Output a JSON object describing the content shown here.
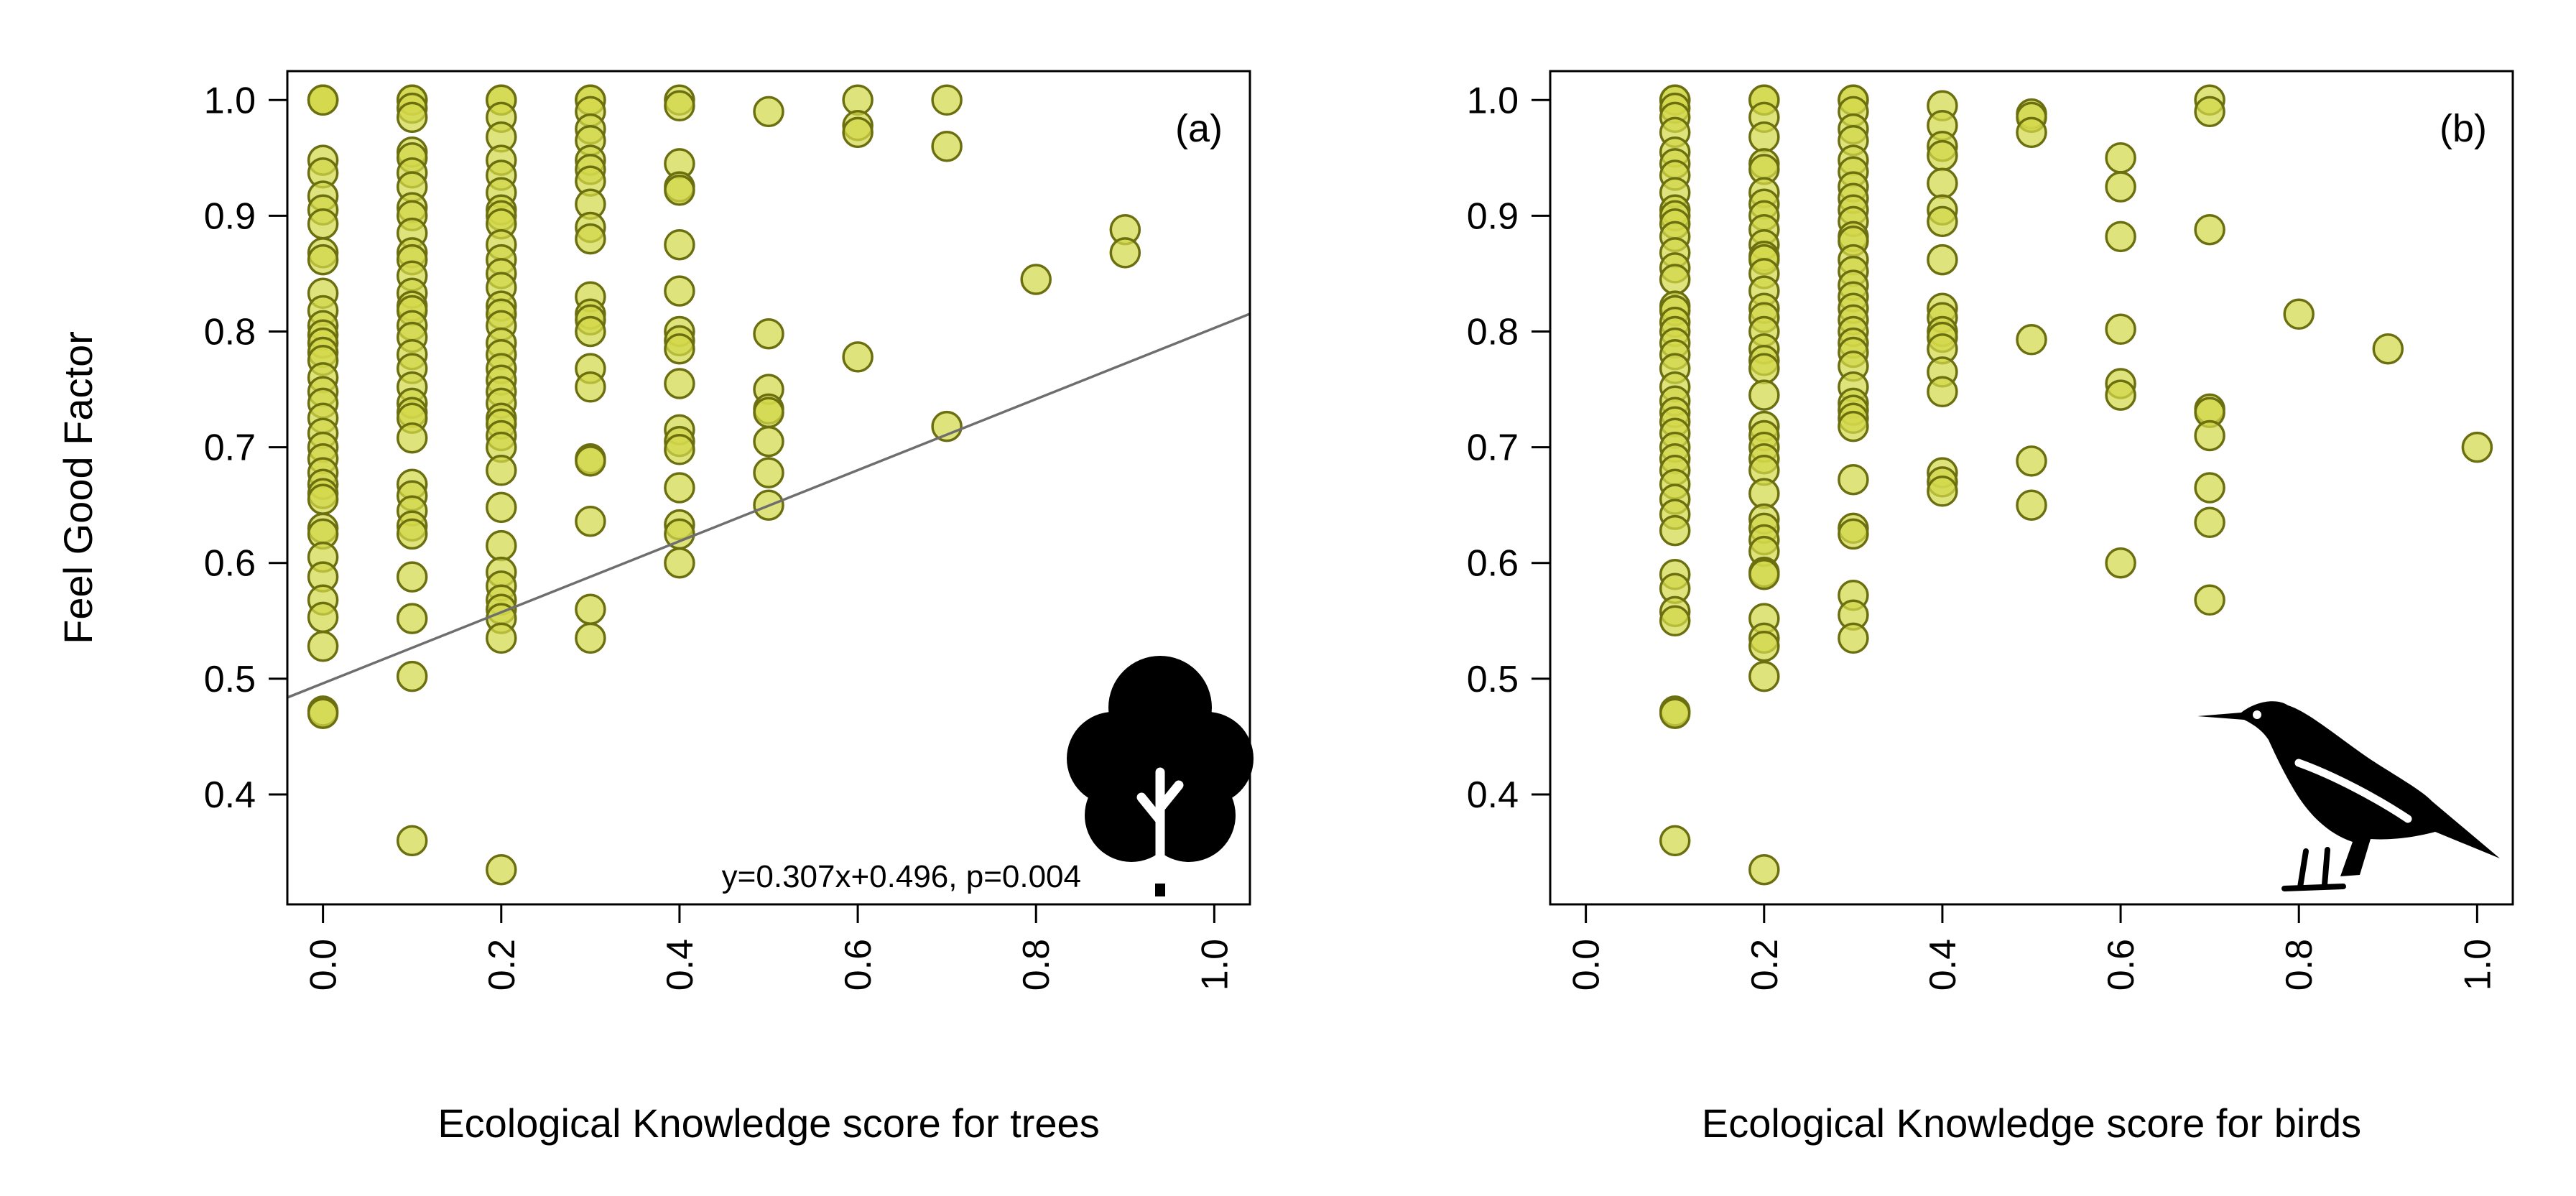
{
  "colors": {
    "point_fill": "#d2d84a",
    "point_fill_opacity": 0.72,
    "point_stroke": "#6b6f10",
    "fit_line": "#6e6e6e",
    "icon": "#000000"
  },
  "chart_data": [
    {
      "type": "scatter",
      "panel_label": "(a)",
      "xlabel": "Ecological Knowledge score for trees",
      "ylabel": "Feel Good Factor",
      "xlim": [
        -0.04,
        1.04
      ],
      "ylim": [
        0.305,
        1.025
      ],
      "x_ticks": [
        0.0,
        0.2,
        0.4,
        0.6,
        0.8,
        1.0
      ],
      "x_tick_labels": [
        "0.0",
        "0.2",
        "0.4",
        "0.6",
        "0.8",
        "1.0"
      ],
      "y_ticks": [
        0.4,
        0.5,
        0.6,
        0.7,
        0.8,
        0.9,
        1.0
      ],
      "y_tick_labels": [
        "0.4",
        "0.5",
        "0.6",
        "0.7",
        "0.8",
        "0.9",
        "1.0"
      ],
      "icon": "tree-icon",
      "annotation": "y=0.307x+0.496, p=0.004",
      "fit": {
        "slope": 0.307,
        "intercept": 0.496
      },
      "points": [
        [
          0.0,
          1.0
        ],
        [
          0.0,
          1.0
        ],
        [
          0.0,
          1.0
        ],
        [
          0.0,
          0.948
        ],
        [
          0.0,
          0.937
        ],
        [
          0.0,
          0.917
        ],
        [
          0.0,
          0.905
        ],
        [
          0.0,
          0.893
        ],
        [
          0.0,
          0.868
        ],
        [
          0.0,
          0.862
        ],
        [
          0.0,
          0.833
        ],
        [
          0.0,
          0.818
        ],
        [
          0.0,
          0.805
        ],
        [
          0.0,
          0.797
        ],
        [
          0.0,
          0.79
        ],
        [
          0.0,
          0.782
        ],
        [
          0.0,
          0.775
        ],
        [
          0.0,
          0.76
        ],
        [
          0.0,
          0.748
        ],
        [
          0.0,
          0.738
        ],
        [
          0.0,
          0.725
        ],
        [
          0.0,
          0.712
        ],
        [
          0.0,
          0.7
        ],
        [
          0.0,
          0.69
        ],
        [
          0.0,
          0.678
        ],
        [
          0.0,
          0.668
        ],
        [
          0.0,
          0.66
        ],
        [
          0.0,
          0.655
        ],
        [
          0.0,
          0.63
        ],
        [
          0.0,
          0.625
        ],
        [
          0.0,
          0.605
        ],
        [
          0.0,
          0.588
        ],
        [
          0.0,
          0.568
        ],
        [
          0.0,
          0.553
        ],
        [
          0.0,
          0.528
        ],
        [
          0.0,
          0.472
        ],
        [
          0.0,
          0.47
        ],
        [
          0.1,
          1.0
        ],
        [
          0.1,
          1.0
        ],
        [
          0.1,
          0.993
        ],
        [
          0.1,
          0.985
        ],
        [
          0.1,
          0.955
        ],
        [
          0.1,
          0.95
        ],
        [
          0.1,
          0.937
        ],
        [
          0.1,
          0.925
        ],
        [
          0.1,
          0.907
        ],
        [
          0.1,
          0.9
        ],
        [
          0.1,
          0.885
        ],
        [
          0.1,
          0.868
        ],
        [
          0.1,
          0.862
        ],
        [
          0.1,
          0.848
        ],
        [
          0.1,
          0.833
        ],
        [
          0.1,
          0.822
        ],
        [
          0.1,
          0.818
        ],
        [
          0.1,
          0.805
        ],
        [
          0.1,
          0.795
        ],
        [
          0.1,
          0.78
        ],
        [
          0.1,
          0.768
        ],
        [
          0.1,
          0.752
        ],
        [
          0.1,
          0.738
        ],
        [
          0.1,
          0.73
        ],
        [
          0.1,
          0.725
        ],
        [
          0.1,
          0.708
        ],
        [
          0.1,
          0.668
        ],
        [
          0.1,
          0.658
        ],
        [
          0.1,
          0.645
        ],
        [
          0.1,
          0.632
        ],
        [
          0.1,
          0.625
        ],
        [
          0.1,
          0.588
        ],
        [
          0.1,
          0.552
        ],
        [
          0.1,
          0.502
        ],
        [
          0.1,
          0.36
        ],
        [
          0.2,
          1.0
        ],
        [
          0.2,
          1.0
        ],
        [
          0.2,
          0.985
        ],
        [
          0.2,
          0.968
        ],
        [
          0.2,
          0.948
        ],
        [
          0.2,
          0.935
        ],
        [
          0.2,
          0.92
        ],
        [
          0.2,
          0.905
        ],
        [
          0.2,
          0.9
        ],
        [
          0.2,
          0.893
        ],
        [
          0.2,
          0.875
        ],
        [
          0.2,
          0.862
        ],
        [
          0.2,
          0.85
        ],
        [
          0.2,
          0.838
        ],
        [
          0.2,
          0.822
        ],
        [
          0.2,
          0.815
        ],
        [
          0.2,
          0.805
        ],
        [
          0.2,
          0.79
        ],
        [
          0.2,
          0.78
        ],
        [
          0.2,
          0.768
        ],
        [
          0.2,
          0.758
        ],
        [
          0.2,
          0.748
        ],
        [
          0.2,
          0.738
        ],
        [
          0.2,
          0.725
        ],
        [
          0.2,
          0.72
        ],
        [
          0.2,
          0.71
        ],
        [
          0.2,
          0.7
        ],
        [
          0.2,
          0.68
        ],
        [
          0.2,
          0.648
        ],
        [
          0.2,
          0.615
        ],
        [
          0.2,
          0.592
        ],
        [
          0.2,
          0.58
        ],
        [
          0.2,
          0.568
        ],
        [
          0.2,
          0.56
        ],
        [
          0.2,
          0.552
        ],
        [
          0.2,
          0.535
        ],
        [
          0.2,
          0.335
        ],
        [
          0.3,
          1.0
        ],
        [
          0.3,
          1.0
        ],
        [
          0.3,
          0.99
        ],
        [
          0.3,
          0.975
        ],
        [
          0.3,
          0.965
        ],
        [
          0.3,
          0.948
        ],
        [
          0.3,
          0.94
        ],
        [
          0.3,
          0.93
        ],
        [
          0.3,
          0.91
        ],
        [
          0.3,
          0.89
        ],
        [
          0.3,
          0.88
        ],
        [
          0.3,
          0.83
        ],
        [
          0.3,
          0.815
        ],
        [
          0.3,
          0.81
        ],
        [
          0.3,
          0.8
        ],
        [
          0.3,
          0.768
        ],
        [
          0.3,
          0.752
        ],
        [
          0.3,
          0.69
        ],
        [
          0.3,
          0.688
        ],
        [
          0.3,
          0.636
        ],
        [
          0.3,
          0.56
        ],
        [
          0.3,
          0.535
        ],
        [
          0.4,
          1.0
        ],
        [
          0.4,
          0.995
        ],
        [
          0.4,
          0.945
        ],
        [
          0.4,
          0.925
        ],
        [
          0.4,
          0.922
        ],
        [
          0.4,
          0.875
        ],
        [
          0.4,
          0.835
        ],
        [
          0.4,
          0.8
        ],
        [
          0.4,
          0.792
        ],
        [
          0.4,
          0.785
        ],
        [
          0.4,
          0.755
        ],
        [
          0.4,
          0.715
        ],
        [
          0.4,
          0.705
        ],
        [
          0.4,
          0.698
        ],
        [
          0.4,
          0.665
        ],
        [
          0.4,
          0.633
        ],
        [
          0.4,
          0.625
        ],
        [
          0.4,
          0.6
        ],
        [
          0.5,
          0.99
        ],
        [
          0.5,
          0.798
        ],
        [
          0.5,
          0.75
        ],
        [
          0.5,
          0.733
        ],
        [
          0.5,
          0.73
        ],
        [
          0.5,
          0.705
        ],
        [
          0.5,
          0.678
        ],
        [
          0.5,
          0.65
        ],
        [
          0.6,
          1.0
        ],
        [
          0.6,
          0.978
        ],
        [
          0.6,
          0.972
        ],
        [
          0.6,
          0.778
        ],
        [
          0.7,
          1.0
        ],
        [
          0.7,
          0.96
        ],
        [
          0.7,
          0.718
        ],
        [
          0.8,
          0.845
        ],
        [
          0.9,
          0.888
        ],
        [
          0.9,
          0.868
        ]
      ]
    },
    {
      "type": "scatter",
      "panel_label": "(b)",
      "xlabel": "Ecological Knowledge score for birds",
      "ylabel": "",
      "xlim": [
        -0.04,
        1.04
      ],
      "ylim": [
        0.305,
        1.025
      ],
      "x_ticks": [
        0.0,
        0.2,
        0.4,
        0.6,
        0.8,
        1.0
      ],
      "x_tick_labels": [
        "0.0",
        "0.2",
        "0.4",
        "0.6",
        "0.8",
        "1.0"
      ],
      "y_ticks": [
        0.4,
        0.5,
        0.6,
        0.7,
        0.8,
        0.9,
        1.0
      ],
      "y_tick_labels": [
        "0.4",
        "0.5",
        "0.6",
        "0.7",
        "0.8",
        "0.9",
        "1.0"
      ],
      "icon": "bird-icon",
      "points": [
        [
          0.1,
          1.0
        ],
        [
          0.1,
          1.0
        ],
        [
          0.1,
          0.993
        ],
        [
          0.1,
          0.985
        ],
        [
          0.1,
          0.972
        ],
        [
          0.1,
          0.955
        ],
        [
          0.1,
          0.945
        ],
        [
          0.1,
          0.935
        ],
        [
          0.1,
          0.92
        ],
        [
          0.1,
          0.905
        ],
        [
          0.1,
          0.9
        ],
        [
          0.1,
          0.893
        ],
        [
          0.1,
          0.882
        ],
        [
          0.1,
          0.868
        ],
        [
          0.1,
          0.855
        ],
        [
          0.1,
          0.845
        ],
        [
          0.1,
          0.822
        ],
        [
          0.1,
          0.818
        ],
        [
          0.1,
          0.808
        ],
        [
          0.1,
          0.8
        ],
        [
          0.1,
          0.79
        ],
        [
          0.1,
          0.78
        ],
        [
          0.1,
          0.768
        ],
        [
          0.1,
          0.752
        ],
        [
          0.1,
          0.74
        ],
        [
          0.1,
          0.73
        ],
        [
          0.1,
          0.722
        ],
        [
          0.1,
          0.712
        ],
        [
          0.1,
          0.7
        ],
        [
          0.1,
          0.69
        ],
        [
          0.1,
          0.68
        ],
        [
          0.1,
          0.668
        ],
        [
          0.1,
          0.655
        ],
        [
          0.1,
          0.642
        ],
        [
          0.1,
          0.628
        ],
        [
          0.1,
          0.59
        ],
        [
          0.1,
          0.578
        ],
        [
          0.1,
          0.558
        ],
        [
          0.1,
          0.55
        ],
        [
          0.1,
          0.472
        ],
        [
          0.1,
          0.47
        ],
        [
          0.1,
          0.36
        ],
        [
          0.2,
          1.0
        ],
        [
          0.2,
          1.0
        ],
        [
          0.2,
          0.985
        ],
        [
          0.2,
          0.968
        ],
        [
          0.2,
          0.945
        ],
        [
          0.2,
          0.94
        ],
        [
          0.2,
          0.92
        ],
        [
          0.2,
          0.91
        ],
        [
          0.2,
          0.9
        ],
        [
          0.2,
          0.888
        ],
        [
          0.2,
          0.875
        ],
        [
          0.2,
          0.865
        ],
        [
          0.2,
          0.862
        ],
        [
          0.2,
          0.85
        ],
        [
          0.2,
          0.835
        ],
        [
          0.2,
          0.82
        ],
        [
          0.2,
          0.812
        ],
        [
          0.2,
          0.8
        ],
        [
          0.2,
          0.785
        ],
        [
          0.2,
          0.775
        ],
        [
          0.2,
          0.768
        ],
        [
          0.2,
          0.745
        ],
        [
          0.2,
          0.718
        ],
        [
          0.2,
          0.71
        ],
        [
          0.2,
          0.7
        ],
        [
          0.2,
          0.69
        ],
        [
          0.2,
          0.68
        ],
        [
          0.2,
          0.66
        ],
        [
          0.2,
          0.638
        ],
        [
          0.2,
          0.63
        ],
        [
          0.2,
          0.62
        ],
        [
          0.2,
          0.61
        ],
        [
          0.2,
          0.592
        ],
        [
          0.2,
          0.59
        ],
        [
          0.2,
          0.552
        ],
        [
          0.2,
          0.535
        ],
        [
          0.2,
          0.528
        ],
        [
          0.2,
          0.502
        ],
        [
          0.2,
          0.335
        ],
        [
          0.3,
          1.0
        ],
        [
          0.3,
          1.0
        ],
        [
          0.3,
          0.99
        ],
        [
          0.3,
          0.975
        ],
        [
          0.3,
          0.965
        ],
        [
          0.3,
          0.948
        ],
        [
          0.3,
          0.938
        ],
        [
          0.3,
          0.925
        ],
        [
          0.3,
          0.915
        ],
        [
          0.3,
          0.905
        ],
        [
          0.3,
          0.895
        ],
        [
          0.3,
          0.882
        ],
        [
          0.3,
          0.878
        ],
        [
          0.3,
          0.862
        ],
        [
          0.3,
          0.852
        ],
        [
          0.3,
          0.84
        ],
        [
          0.3,
          0.83
        ],
        [
          0.3,
          0.82
        ],
        [
          0.3,
          0.81
        ],
        [
          0.3,
          0.8
        ],
        [
          0.3,
          0.79
        ],
        [
          0.3,
          0.782
        ],
        [
          0.3,
          0.77
        ],
        [
          0.3,
          0.752
        ],
        [
          0.3,
          0.738
        ],
        [
          0.3,
          0.732
        ],
        [
          0.3,
          0.725
        ],
        [
          0.3,
          0.718
        ],
        [
          0.3,
          0.672
        ],
        [
          0.3,
          0.63
        ],
        [
          0.3,
          0.625
        ],
        [
          0.3,
          0.572
        ],
        [
          0.3,
          0.555
        ],
        [
          0.3,
          0.535
        ],
        [
          0.4,
          0.995
        ],
        [
          0.4,
          0.978
        ],
        [
          0.4,
          0.96
        ],
        [
          0.4,
          0.952
        ],
        [
          0.4,
          0.928
        ],
        [
          0.4,
          0.905
        ],
        [
          0.4,
          0.895
        ],
        [
          0.4,
          0.862
        ],
        [
          0.4,
          0.82
        ],
        [
          0.4,
          0.812
        ],
        [
          0.4,
          0.8
        ],
        [
          0.4,
          0.795
        ],
        [
          0.4,
          0.785
        ],
        [
          0.4,
          0.765
        ],
        [
          0.4,
          0.748
        ],
        [
          0.4,
          0.678
        ],
        [
          0.4,
          0.67
        ],
        [
          0.4,
          0.662
        ],
        [
          0.5,
          0.988
        ],
        [
          0.5,
          0.985
        ],
        [
          0.5,
          0.972
        ],
        [
          0.5,
          0.793
        ],
        [
          0.5,
          0.688
        ],
        [
          0.5,
          0.65
        ],
        [
          0.6,
          0.95
        ],
        [
          0.6,
          0.925
        ],
        [
          0.6,
          0.882
        ],
        [
          0.6,
          0.802
        ],
        [
          0.6,
          0.755
        ],
        [
          0.6,
          0.745
        ],
        [
          0.6,
          0.6
        ],
        [
          0.7,
          1.0
        ],
        [
          0.7,
          0.99
        ],
        [
          0.7,
          0.888
        ],
        [
          0.7,
          0.733
        ],
        [
          0.7,
          0.73
        ],
        [
          0.7,
          0.71
        ],
        [
          0.7,
          0.665
        ],
        [
          0.7,
          0.635
        ],
        [
          0.7,
          0.568
        ],
        [
          0.8,
          0.815
        ],
        [
          0.9,
          0.785
        ],
        [
          1.0,
          0.7
        ]
      ]
    }
  ]
}
